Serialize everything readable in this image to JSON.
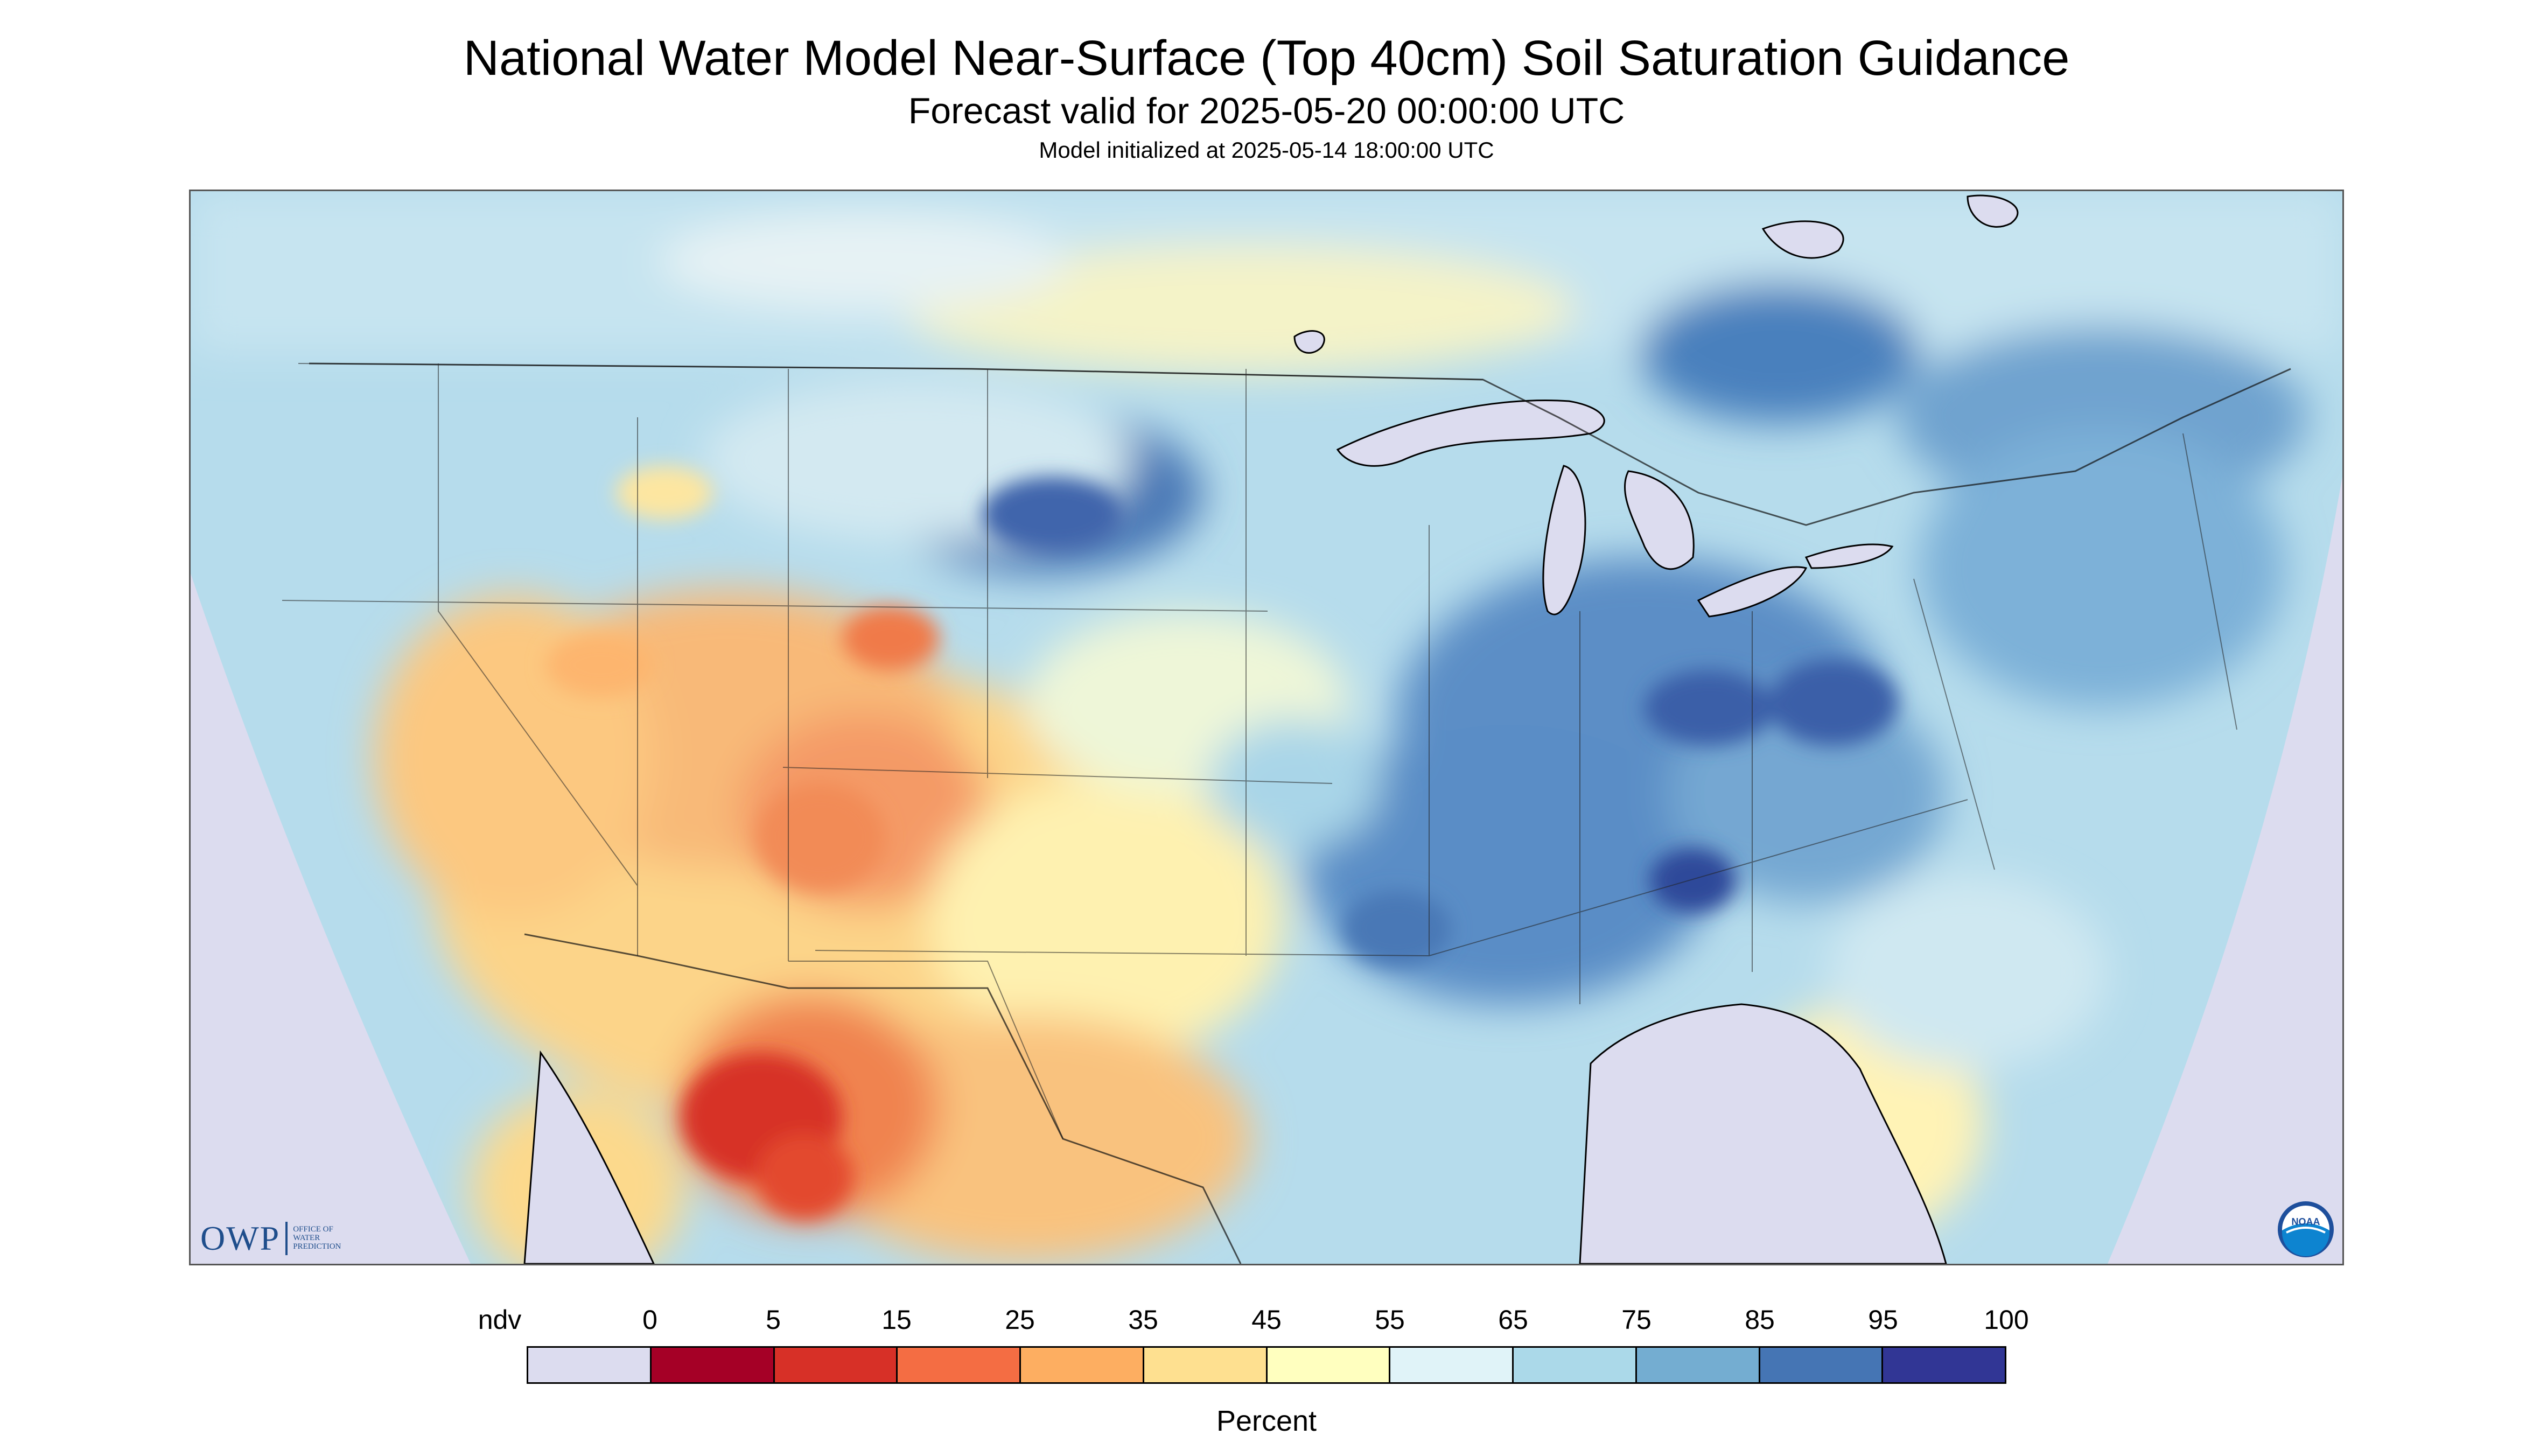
{
  "title": "National Water Model Near-Surface (Top 40cm) Soil Saturation Guidance",
  "subtitle": "Forecast valid for 2025-05-20 00:00:00 UTC",
  "init_line": "Model initialized at 2025-05-14 18:00:00 UTC",
  "logos": {
    "owp_letters": "OWP",
    "owp_sub_1": "OFFICE OF",
    "owp_sub_2": "WATER",
    "owp_sub_3": "PREDICTION",
    "noaa_text": "NOAA"
  },
  "legend": {
    "title": "Percent",
    "labels": [
      "ndv",
      "0",
      "5",
      "15",
      "25",
      "35",
      "45",
      "55",
      "65",
      "75",
      "85",
      "95",
      "100"
    ],
    "colors": [
      "#dcdcef",
      "#a50026",
      "#d73027",
      "#f46d43",
      "#fdae61",
      "#fee090",
      "#ffffbf",
      "#e0f3f8",
      "#abd9e9",
      "#74add1",
      "#4575b4",
      "#313695"
    ]
  }
}
